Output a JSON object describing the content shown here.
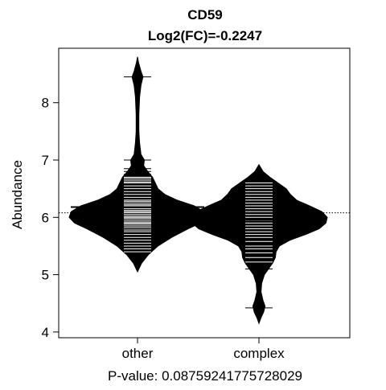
{
  "chart_data": {
    "type": "beanplot",
    "title": "CD59",
    "subtitle": "Log2(FC)=-0.2247",
    "xlabel": "",
    "ylabel": "Abundance",
    "footer": "P-value: 0.08759241775728029",
    "ylim": [
      3.9,
      8.95
    ],
    "yticks": [
      4,
      5,
      6,
      7,
      8
    ],
    "overall_reference": 6.08,
    "categories": [
      "other",
      "complex"
    ],
    "groups": [
      {
        "name": "other",
        "median": 6.18,
        "density": [
          [
            5.05,
            0.0
          ],
          [
            5.2,
            0.06
          ],
          [
            5.35,
            0.16
          ],
          [
            5.5,
            0.3
          ],
          [
            5.65,
            0.5
          ],
          [
            5.8,
            0.74
          ],
          [
            5.9,
            0.92
          ],
          [
            6.0,
            1.0
          ],
          [
            6.1,
            0.97
          ],
          [
            6.2,
            0.83
          ],
          [
            6.3,
            0.58
          ],
          [
            6.4,
            0.4
          ],
          [
            6.5,
            0.3
          ],
          [
            6.6,
            0.26
          ],
          [
            6.7,
            0.22
          ],
          [
            6.8,
            0.15
          ],
          [
            6.9,
            0.09
          ],
          [
            7.0,
            0.1
          ],
          [
            7.1,
            0.05
          ],
          [
            7.3,
            0.03
          ],
          [
            7.5,
            0.02
          ],
          [
            7.8,
            0.02
          ],
          [
            8.1,
            0.03
          ],
          [
            8.3,
            0.05
          ],
          [
            8.45,
            0.08
          ],
          [
            8.55,
            0.05
          ],
          [
            8.7,
            0.015
          ],
          [
            8.8,
            0.0
          ]
        ],
        "points": [
          5.4,
          5.45,
          5.5,
          5.55,
          5.6,
          5.65,
          5.7,
          5.75,
          5.78,
          5.82,
          5.85,
          5.88,
          5.9,
          5.92,
          5.95,
          5.98,
          6.0,
          6.02,
          6.05,
          6.08,
          6.1,
          6.12,
          6.15,
          6.18,
          6.2,
          6.22,
          6.25,
          6.28,
          6.3,
          6.35,
          6.4,
          6.45,
          6.5,
          6.55,
          6.6,
          6.62,
          6.65,
          6.68,
          6.7,
          6.75,
          6.8,
          6.85,
          7.0,
          8.45
        ]
      },
      {
        "name": "complex",
        "median": 5.96,
        "density": [
          [
            4.15,
            0.0
          ],
          [
            4.25,
            0.03
          ],
          [
            4.35,
            0.07
          ],
          [
            4.45,
            0.09
          ],
          [
            4.55,
            0.06
          ],
          [
            4.7,
            0.03
          ],
          [
            4.85,
            0.04
          ],
          [
            5.0,
            0.08
          ],
          [
            5.1,
            0.14
          ],
          [
            5.2,
            0.2
          ],
          [
            5.3,
            0.24
          ],
          [
            5.4,
            0.25
          ],
          [
            5.5,
            0.3
          ],
          [
            5.6,
            0.45
          ],
          [
            5.7,
            0.68
          ],
          [
            5.8,
            0.88
          ],
          [
            5.9,
            0.98
          ],
          [
            6.0,
            1.0
          ],
          [
            6.1,
            0.92
          ],
          [
            6.2,
            0.74
          ],
          [
            6.3,
            0.55
          ],
          [
            6.4,
            0.46
          ],
          [
            6.5,
            0.4
          ],
          [
            6.6,
            0.28
          ],
          [
            6.7,
            0.16
          ],
          [
            6.8,
            0.06
          ],
          [
            6.92,
            0.0
          ]
        ],
        "points": [
          4.42,
          5.1,
          5.22,
          5.3,
          5.38,
          5.45,
          5.5,
          5.58,
          5.65,
          5.7,
          5.75,
          5.8,
          5.85,
          5.9,
          5.95,
          6.0,
          6.05,
          6.1,
          6.15,
          6.2,
          6.25,
          6.3,
          6.35,
          6.4,
          6.45,
          6.5,
          6.55,
          6.6
        ]
      }
    ]
  }
}
